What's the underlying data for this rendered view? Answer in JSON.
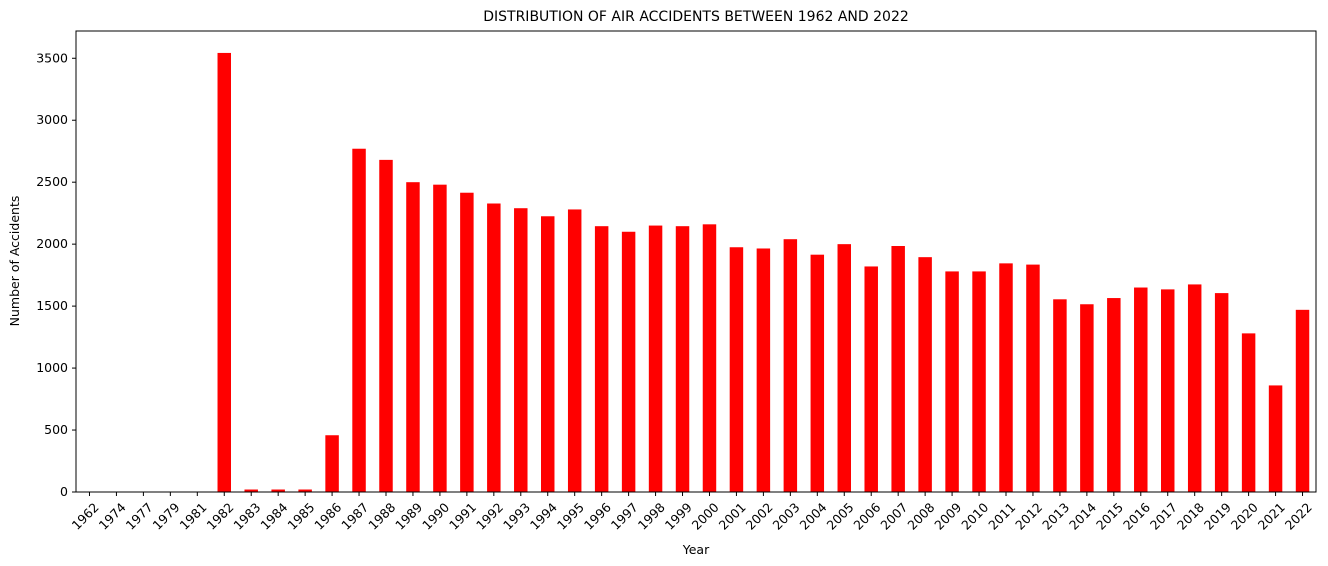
{
  "chart_data": {
    "type": "bar",
    "title": "DISTRIBUTION OF AIR ACCIDENTS BETWEEN 1962 AND 2022",
    "xlabel": "Year",
    "ylabel": "Number of Accidents",
    "categories": [
      "1962",
      "1974",
      "1977",
      "1979",
      "1981",
      "1982",
      "1983",
      "1984",
      "1985",
      "1986",
      "1987",
      "1988",
      "1989",
      "1990",
      "1991",
      "1992",
      "1993",
      "1994",
      "1995",
      "1996",
      "1997",
      "1998",
      "1999",
      "2000",
      "2001",
      "2002",
      "2003",
      "2004",
      "2005",
      "2006",
      "2007",
      "2008",
      "2009",
      "2010",
      "2011",
      "2012",
      "2013",
      "2014",
      "2015",
      "2016",
      "2017",
      "2018",
      "2019",
      "2020",
      "2021",
      "2022"
    ],
    "values": [
      1,
      1,
      2,
      3,
      1,
      3543,
      20,
      20,
      20,
      458,
      2770,
      2680,
      2500,
      2480,
      2415,
      2328,
      2290,
      2225,
      2280,
      2145,
      2100,
      2150,
      2145,
      2160,
      1975,
      1965,
      2040,
      1915,
      2000,
      1820,
      1985,
      1895,
      1780,
      1780,
      1845,
      1835,
      1555,
      1515,
      1565,
      1650,
      1635,
      1675,
      1605,
      1280,
      860,
      1470
    ],
    "ylim": [
      0,
      3720
    ],
    "yticks": [
      0,
      500,
      1000,
      1500,
      2000,
      2500,
      3000,
      3500
    ],
    "bar_color": "#ff0000",
    "grid": false
  }
}
